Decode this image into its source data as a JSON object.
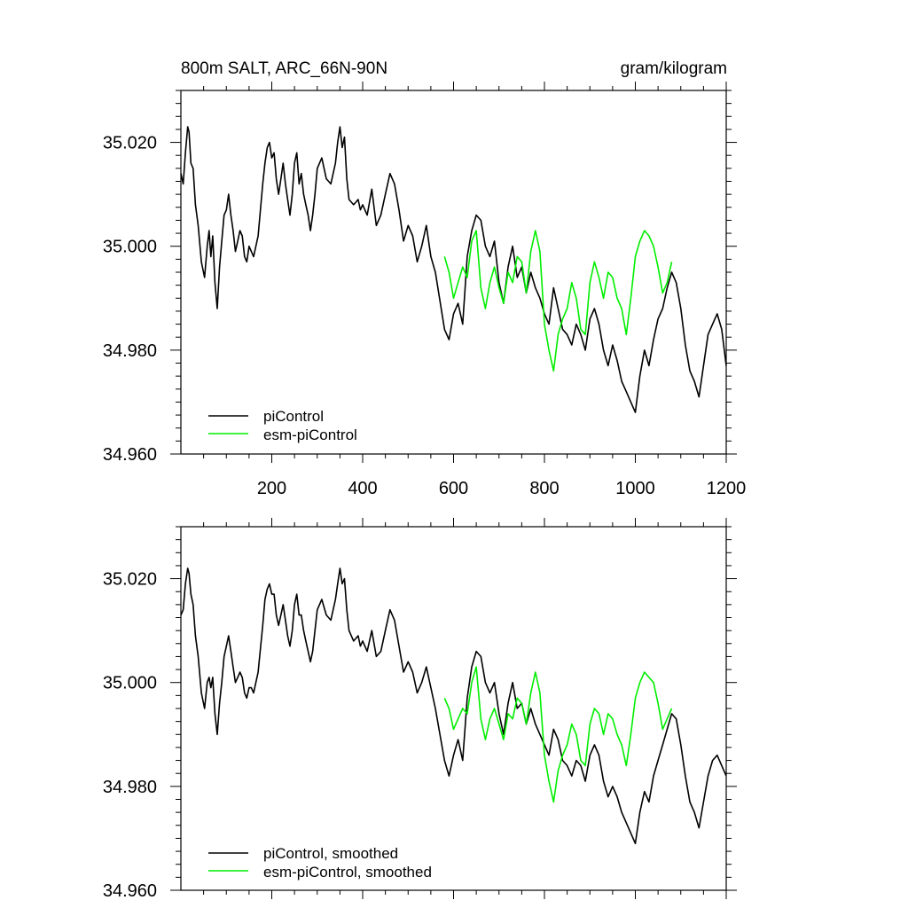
{
  "chart_data": [
    {
      "type": "line",
      "title_left": "800m SALT, ARC_66N-90N",
      "title_right": "gram/kilogram",
      "xlabel": "",
      "ylabel": "",
      "xlim": [
        0,
        1200
      ],
      "ylim": [
        34.96,
        35.03
      ],
      "xticks": [
        200,
        400,
        600,
        800,
        1000,
        1200
      ],
      "xtick_labels": [
        "200",
        "400",
        "600",
        "800",
        "1000",
        "1200"
      ],
      "yticks": [
        34.96,
        34.98,
        35.0,
        35.02
      ],
      "ytick_labels": [
        "34.960",
        "34.980",
        "35.000",
        "35.020"
      ],
      "grid": false,
      "legend_position": "bottom-left",
      "series": [
        {
          "name": "piControl",
          "color": "#000000",
          "x": [
            0,
            5,
            10,
            15,
            18,
            22,
            27,
            32,
            38,
            45,
            52,
            58,
            62,
            66,
            70,
            75,
            80,
            85,
            90,
            95,
            100,
            105,
            110,
            115,
            120,
            125,
            130,
            135,
            140,
            145,
            150,
            155,
            160,
            170,
            180,
            185,
            190,
            195,
            200,
            205,
            210,
            215,
            220,
            225,
            230,
            235,
            240,
            245,
            250,
            255,
            260,
            265,
            270,
            275,
            280,
            285,
            290,
            295,
            300,
            310,
            320,
            330,
            340,
            345,
            350,
            355,
            360,
            365,
            370,
            380,
            390,
            395,
            400,
            410,
            420,
            430,
            440,
            450,
            460,
            470,
            480,
            490,
            500,
            510,
            520,
            530,
            540,
            550,
            560,
            580,
            590,
            600,
            610,
            620,
            630,
            640,
            650,
            660,
            670,
            680,
            690,
            700,
            710,
            720,
            730,
            740,
            750,
            760,
            770,
            780,
            790,
            800,
            810,
            820,
            830,
            840,
            850,
            860,
            870,
            880,
            890,
            900,
            910,
            920,
            930,
            940,
            950,
            960,
            970,
            980,
            990,
            1000,
            1010,
            1020,
            1030,
            1040,
            1050,
            1060,
            1070,
            1080,
            1090,
            1100,
            1110,
            1120,
            1130,
            1140,
            1150,
            1160,
            1170,
            1180,
            1190,
            1200
          ],
          "values": [
            35.014,
            35.012,
            35.018,
            35.023,
            35.022,
            35.016,
            35.015,
            35.008,
            35.004,
            34.997,
            34.994,
            35.0,
            35.003,
            34.998,
            35.002,
            34.993,
            34.988,
            34.996,
            35.001,
            35.006,
            35.007,
            35.01,
            35.006,
            35.003,
            34.999,
            35.001,
            35.003,
            35.002,
            34.998,
            34.997,
            35.0,
            34.999,
            34.998,
            35.002,
            35.012,
            35.016,
            35.019,
            35.02,
            35.017,
            35.018,
            35.013,
            35.01,
            35.013,
            35.016,
            35.012,
            35.009,
            35.006,
            35.01,
            35.016,
            35.018,
            35.012,
            35.014,
            35.01,
            35.008,
            35.006,
            35.003,
            35.006,
            35.01,
            35.015,
            35.017,
            35.013,
            35.012,
            35.016,
            35.02,
            35.023,
            35.019,
            35.021,
            35.013,
            35.009,
            35.008,
            35.009,
            35.007,
            35.008,
            35.006,
            35.011,
            35.004,
            35.006,
            35.01,
            35.014,
            35.012,
            35.007,
            35.001,
            35.004,
            35.002,
            34.997,
            35.0,
            35.004,
            34.998,
            34.995,
            34.984,
            34.982,
            34.987,
            34.989,
            34.985,
            34.998,
            35.003,
            35.006,
            35.005,
            35.0,
            34.998,
            35.001,
            34.993,
            34.989,
            34.996,
            35.0,
            34.994,
            34.996,
            34.991,
            34.995,
            34.992,
            34.99,
            34.987,
            34.985,
            34.992,
            34.988,
            34.984,
            34.983,
            34.981,
            34.985,
            34.983,
            34.98,
            34.986,
            34.988,
            34.985,
            34.98,
            34.977,
            34.981,
            34.978,
            34.974,
            34.972,
            34.97,
            34.968,
            34.975,
            34.98,
            34.977,
            34.982,
            34.986,
            34.988,
            34.992,
            34.995,
            34.993,
            34.988,
            34.981,
            34.976,
            34.974,
            34.971,
            34.977,
            34.983,
            34.985,
            34.987,
            34.984,
            34.977
          ]
        },
        {
          "name": "esm-piControl",
          "color": "#00ee00",
          "x": [
            580,
            590,
            600,
            610,
            620,
            630,
            640,
            650,
            660,
            670,
            680,
            690,
            700,
            710,
            720,
            730,
            740,
            750,
            760,
            770,
            780,
            790,
            800,
            810,
            820,
            830,
            840,
            850,
            860,
            870,
            880,
            890,
            900,
            910,
            920,
            930,
            940,
            950,
            960,
            970,
            980,
            990,
            1000,
            1010,
            1020,
            1030,
            1040,
            1050,
            1060,
            1070,
            1080
          ],
          "values": [
            34.998,
            34.995,
            34.99,
            34.993,
            34.996,
            34.994,
            35.001,
            35.003,
            34.992,
            34.988,
            34.993,
            34.996,
            34.992,
            34.989,
            34.995,
            34.993,
            34.998,
            34.997,
            34.991,
            34.999,
            35.003,
            34.999,
            34.985,
            34.98,
            34.976,
            34.983,
            34.986,
            34.988,
            34.993,
            34.99,
            34.984,
            34.983,
            34.993,
            34.997,
            34.994,
            34.99,
            34.995,
            34.994,
            34.99,
            34.988,
            34.983,
            34.99,
            34.998,
            35.001,
            35.003,
            35.002,
            35.0,
            34.996,
            34.991,
            34.993,
            34.997
          ]
        }
      ]
    },
    {
      "type": "line",
      "xlabel": "",
      "ylabel": "",
      "xlim": [
        0,
        1200
      ],
      "ylim": [
        34.96,
        35.03
      ],
      "xticks": [
        200,
        400,
        600,
        800,
        1000,
        1200
      ],
      "yticks": [
        34.96,
        34.98,
        35.0,
        35.02
      ],
      "ytick_labels": [
        "34.960",
        "34.980",
        "35.000",
        "35.020"
      ],
      "grid": false,
      "legend_position": "bottom-left",
      "series": [
        {
          "name": "piControl, smoothed",
          "color": "#000000",
          "x": [
            0,
            5,
            10,
            15,
            18,
            22,
            27,
            32,
            38,
            45,
            52,
            58,
            62,
            66,
            70,
            75,
            80,
            85,
            90,
            95,
            100,
            105,
            110,
            115,
            120,
            125,
            130,
            135,
            140,
            145,
            150,
            155,
            160,
            170,
            180,
            185,
            190,
            195,
            200,
            205,
            210,
            215,
            220,
            225,
            230,
            235,
            240,
            245,
            250,
            255,
            260,
            265,
            270,
            275,
            280,
            285,
            290,
            295,
            300,
            310,
            320,
            330,
            340,
            345,
            350,
            355,
            360,
            365,
            370,
            380,
            390,
            395,
            400,
            410,
            420,
            430,
            440,
            450,
            460,
            470,
            480,
            490,
            500,
            510,
            520,
            530,
            540,
            550,
            560,
            580,
            590,
            600,
            610,
            620,
            630,
            640,
            650,
            660,
            670,
            680,
            690,
            700,
            710,
            720,
            730,
            740,
            750,
            760,
            770,
            780,
            790,
            800,
            810,
            820,
            830,
            840,
            850,
            860,
            870,
            880,
            890,
            900,
            910,
            920,
            930,
            940,
            950,
            960,
            970,
            980,
            990,
            1000,
            1010,
            1020,
            1030,
            1040,
            1050,
            1060,
            1070,
            1080,
            1090,
            1100,
            1110,
            1120,
            1130,
            1140,
            1150,
            1160,
            1170,
            1180,
            1190,
            1200
          ],
          "values": [
            35.013,
            35.014,
            35.019,
            35.022,
            35.021,
            35.017,
            35.015,
            35.009,
            35.005,
            34.998,
            34.995,
            35.0,
            35.001,
            34.999,
            35.001,
            34.994,
            34.99,
            34.996,
            35.0,
            35.005,
            35.007,
            35.009,
            35.006,
            35.003,
            35.0,
            35.001,
            35.002,
            35.001,
            34.998,
            34.997,
            34.999,
            34.999,
            34.998,
            35.002,
            35.011,
            35.016,
            35.018,
            35.019,
            35.017,
            35.017,
            35.013,
            35.011,
            35.013,
            35.015,
            35.012,
            35.009,
            35.007,
            35.01,
            35.015,
            35.017,
            35.013,
            35.013,
            35.01,
            35.008,
            35.006,
            35.004,
            35.006,
            35.01,
            35.014,
            35.016,
            35.013,
            35.012,
            35.016,
            35.019,
            35.022,
            35.019,
            35.02,
            35.014,
            35.01,
            35.008,
            35.009,
            35.007,
            35.008,
            35.006,
            35.01,
            35.005,
            35.006,
            35.01,
            35.014,
            35.012,
            35.007,
            35.002,
            35.004,
            35.002,
            34.998,
            35.0,
            35.003,
            34.999,
            34.995,
            34.985,
            34.982,
            34.986,
            34.989,
            34.985,
            34.997,
            35.003,
            35.006,
            35.005,
            35.0,
            34.998,
            35.0,
            34.994,
            34.99,
            34.996,
            35.0,
            34.995,
            34.996,
            34.992,
            34.995,
            34.992,
            34.99,
            34.988,
            34.986,
            34.991,
            34.989,
            34.985,
            34.984,
            34.982,
            34.985,
            34.984,
            34.981,
            34.986,
            34.988,
            34.986,
            34.981,
            34.978,
            34.98,
            34.978,
            34.975,
            34.973,
            34.971,
            34.969,
            34.975,
            34.979,
            34.977,
            34.982,
            34.985,
            34.988,
            34.991,
            34.994,
            34.993,
            34.988,
            34.982,
            34.977,
            34.975,
            34.972,
            34.977,
            34.982,
            34.985,
            34.986,
            34.984,
            34.982
          ]
        },
        {
          "name": "esm-piControl, smoothed",
          "color": "#00ee00",
          "x": [
            580,
            590,
            600,
            610,
            620,
            630,
            640,
            650,
            660,
            670,
            680,
            690,
            700,
            710,
            720,
            730,
            740,
            750,
            760,
            770,
            780,
            790,
            800,
            810,
            820,
            830,
            840,
            850,
            860,
            870,
            880,
            890,
            900,
            910,
            920,
            930,
            940,
            950,
            960,
            970,
            980,
            990,
            1000,
            1010,
            1020,
            1030,
            1040,
            1050,
            1060,
            1070,
            1080
          ],
          "values": [
            34.997,
            34.995,
            34.991,
            34.993,
            34.995,
            34.994,
            35.0,
            35.003,
            34.993,
            34.989,
            34.993,
            34.995,
            34.992,
            34.989,
            34.994,
            34.993,
            34.997,
            34.996,
            34.992,
            34.998,
            35.002,
            34.998,
            34.986,
            34.981,
            34.977,
            34.983,
            34.986,
            34.988,
            34.992,
            34.99,
            34.985,
            34.984,
            34.992,
            34.995,
            34.994,
            34.99,
            34.994,
            34.993,
            34.99,
            34.988,
            34.984,
            34.99,
            34.997,
            35.0,
            35.002,
            35.001,
            35.0,
            34.996,
            34.991,
            34.993,
            34.995
          ]
        }
      ]
    }
  ]
}
